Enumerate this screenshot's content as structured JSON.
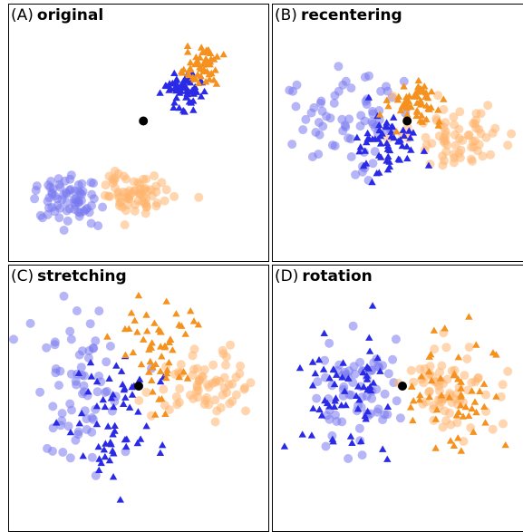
{
  "colors": {
    "blue_circle": "#7878f0",
    "orange_circle": "#ffb56e",
    "blue_triangle": "#2a2ae6",
    "orange_triangle": "#f5911e",
    "center": "#000000"
  },
  "panels": [
    {
      "letter": "(A)",
      "name": "original"
    },
    {
      "letter": "(B)",
      "name": "recentering"
    },
    {
      "letter": "(C)",
      "name": "stretching"
    },
    {
      "letter": "(D)",
      "name": "rotation"
    }
  ],
  "chart_data": {
    "type": "scatter",
    "title": "",
    "xlabel": "",
    "ylabel": "",
    "grid": false,
    "axes_ticks": false,
    "panels": [
      {
        "label": "(A)",
        "title": "original",
        "xlim": [
          0,
          100
        ],
        "ylim": [
          0,
          100
        ],
        "center": [
          52,
          55
        ],
        "groups": [
          {
            "shape": "circle",
            "color": "blue",
            "cx": 20,
            "cy": 22,
            "sx": 7,
            "sy": 5,
            "rot": 0,
            "n": 70
          },
          {
            "shape": "circle",
            "color": "orange",
            "cx": 48,
            "cy": 24,
            "sx": 6.5,
            "sy": 5,
            "rot": 0,
            "n": 70
          },
          {
            "shape": "triangle",
            "color": "blue",
            "cx": 69,
            "cy": 68,
            "sx": 3.8,
            "sy": 4,
            "rot": 0,
            "n": 60
          },
          {
            "shape": "triangle",
            "color": "orange",
            "cx": 77,
            "cy": 78,
            "sx": 3.8,
            "sy": 3.8,
            "rot": 0,
            "n": 55
          }
        ]
      },
      {
        "label": "(B)",
        "title": "recentering",
        "xlim": [
          0,
          100
        ],
        "ylim": [
          0,
          100
        ],
        "center": [
          52,
          55
        ],
        "groups": [
          {
            "shape": "circle",
            "color": "blue",
            "cx": 28,
            "cy": 56,
            "sx": 10,
            "sy": 11,
            "rot": 0,
            "n": 70
          },
          {
            "shape": "circle",
            "color": "orange",
            "cx": 73,
            "cy": 50,
            "sx": 10,
            "sy": 8,
            "rot": 0,
            "n": 70
          },
          {
            "shape": "triangle",
            "color": "blue",
            "cx": 44,
            "cy": 45,
            "sx": 7,
            "sy": 8,
            "rot": 0,
            "n": 60
          },
          {
            "shape": "triangle",
            "color": "orange",
            "cx": 55,
            "cy": 63,
            "sx": 5,
            "sy": 5,
            "rot": 0,
            "n": 55
          }
        ]
      },
      {
        "label": "(C)",
        "title": "stretching",
        "xlim": [
          0,
          100
        ],
        "ylim": [
          0,
          100
        ],
        "center": [
          50,
          55
        ],
        "groups": [
          {
            "shape": "circle",
            "color": "blue",
            "cx": 26,
            "cy": 54,
            "sx": 10,
            "sy": 14,
            "rot": 0,
            "n": 70
          },
          {
            "shape": "circle",
            "color": "orange",
            "cx": 77,
            "cy": 54,
            "sx": 11,
            "sy": 7,
            "rot": 0,
            "n": 70
          },
          {
            "shape": "triangle",
            "color": "blue",
            "cx": 39,
            "cy": 38,
            "sx": 9,
            "sy": 14,
            "rot": 0,
            "n": 60
          },
          {
            "shape": "triangle",
            "color": "orange",
            "cx": 59,
            "cy": 70,
            "sx": 9,
            "sy": 10,
            "rot": 0,
            "n": 55
          }
        ]
      },
      {
        "label": "(D)",
        "title": "rotation",
        "xlim": [
          0,
          100
        ],
        "ylim": [
          0,
          100
        ],
        "center": [
          50,
          55
        ],
        "groups": [
          {
            "shape": "circle",
            "color": "blue",
            "cx": 29,
            "cy": 53,
            "sx": 9,
            "sy": 11,
            "rot": 0,
            "n": 70
          },
          {
            "shape": "circle",
            "color": "orange",
            "cx": 72,
            "cy": 54,
            "sx": 10,
            "sy": 10,
            "rot": 0,
            "n": 70
          },
          {
            "shape": "triangle",
            "color": "blue",
            "cx": 27,
            "cy": 55,
            "sx": 11,
            "sy": 13,
            "rot": 0,
            "n": 60
          },
          {
            "shape": "triangle",
            "color": "orange",
            "cx": 71,
            "cy": 50,
            "sx": 10,
            "sy": 12,
            "rot": 0,
            "n": 55
          }
        ]
      }
    ]
  }
}
